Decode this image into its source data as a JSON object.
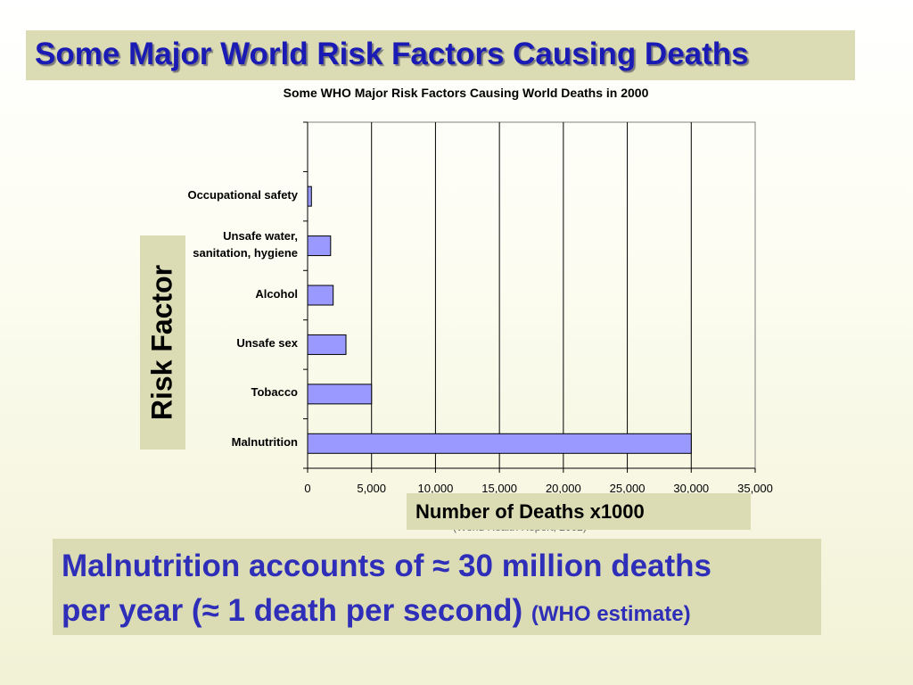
{
  "slide": {
    "title": "Some Major World Risk Factors Causing Deaths",
    "callout_line1": "Malnutrition accounts of ≈ 30 million deaths",
    "callout_line2": "per year (≈ 1 death per second)",
    "callout_note": "(WHO estimate)",
    "source_note": "(World Health Report, 2002)"
  },
  "colors": {
    "title_text": "#1a1ab5",
    "callout_text": "#2e2eb8",
    "box_fill": "#dcdcb4",
    "bar_fill": "#9999ff"
  },
  "chart_data": {
    "type": "bar",
    "orientation": "horizontal",
    "title": "Some WHO Major Risk Factors Causing World Deaths in 2000",
    "xlabel": "Number of Deaths x1000",
    "ylabel": "Risk Factor",
    "categories": [
      "Malnutrition",
      "Tobacco",
      "Unsafe sex",
      "Alcohol",
      "Unsafe water, sanitation, hygiene",
      "Occupational safety"
    ],
    "category_lines": [
      [
        "Malnutrition"
      ],
      [
        "Tobacco"
      ],
      [
        "Unsafe sex"
      ],
      [
        "Alcohol"
      ],
      [
        "Unsafe water,",
        "sanitation, hygiene"
      ],
      [
        "Occupational safety"
      ]
    ],
    "values": [
      30000,
      5000,
      3000,
      2000,
      1800,
      300
    ],
    "xlim": [
      0,
      35000
    ],
    "ticks": [
      "0",
      "5,000",
      "10,000",
      "15,000",
      "20,000",
      "25,000",
      "30,000",
      "35,000"
    ],
    "grid": "vertical",
    "bar_color": "#9999ff"
  }
}
